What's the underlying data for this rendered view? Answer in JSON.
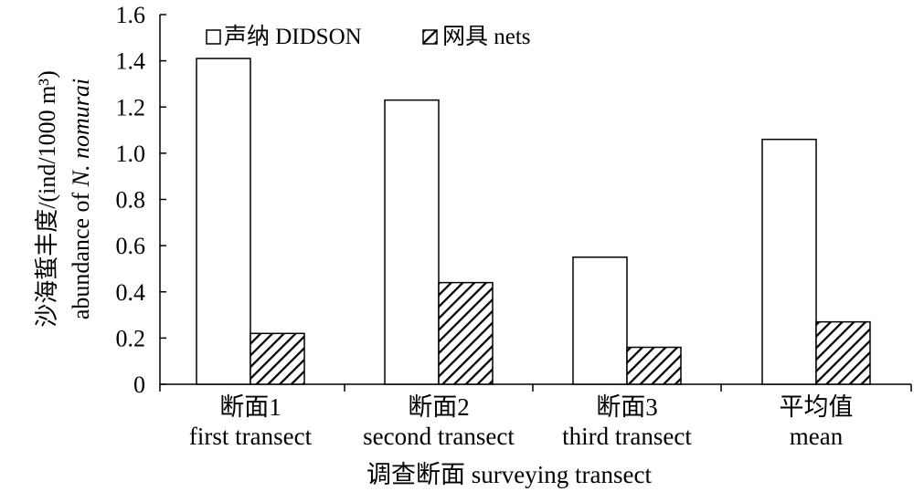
{
  "chart_data": {
    "type": "bar",
    "categories": [
      {
        "zh": "断面1",
        "en": "first transect"
      },
      {
        "zh": "断面2",
        "en": "second transect"
      },
      {
        "zh": "断面3",
        "en": "third transect"
      },
      {
        "zh": "平均值",
        "en": "mean"
      }
    ],
    "series": [
      {
        "name": "声纳 DIDSON",
        "fill": "none",
        "values": [
          1.41,
          1.23,
          0.55,
          1.06
        ]
      },
      {
        "name": "网具 nets",
        "fill": "hatched",
        "values": [
          0.22,
          0.44,
          0.16,
          0.27
        ]
      }
    ],
    "ylim": [
      0,
      1.6
    ],
    "yticks": [
      "0",
      "0.2",
      "0.4",
      "0.6",
      "0.8",
      "1.0",
      "1.2",
      "1.4",
      "1.6"
    ],
    "ylabel_zh": "沙海蜇丰度/(ind/1000 m³)",
    "ylabel_en_prefix": "abundance of ",
    "ylabel_en_italic": "N. nomurai",
    "xlabel": "调查断面 surveying transect",
    "legend_position": "top-left",
    "grid": false
  }
}
